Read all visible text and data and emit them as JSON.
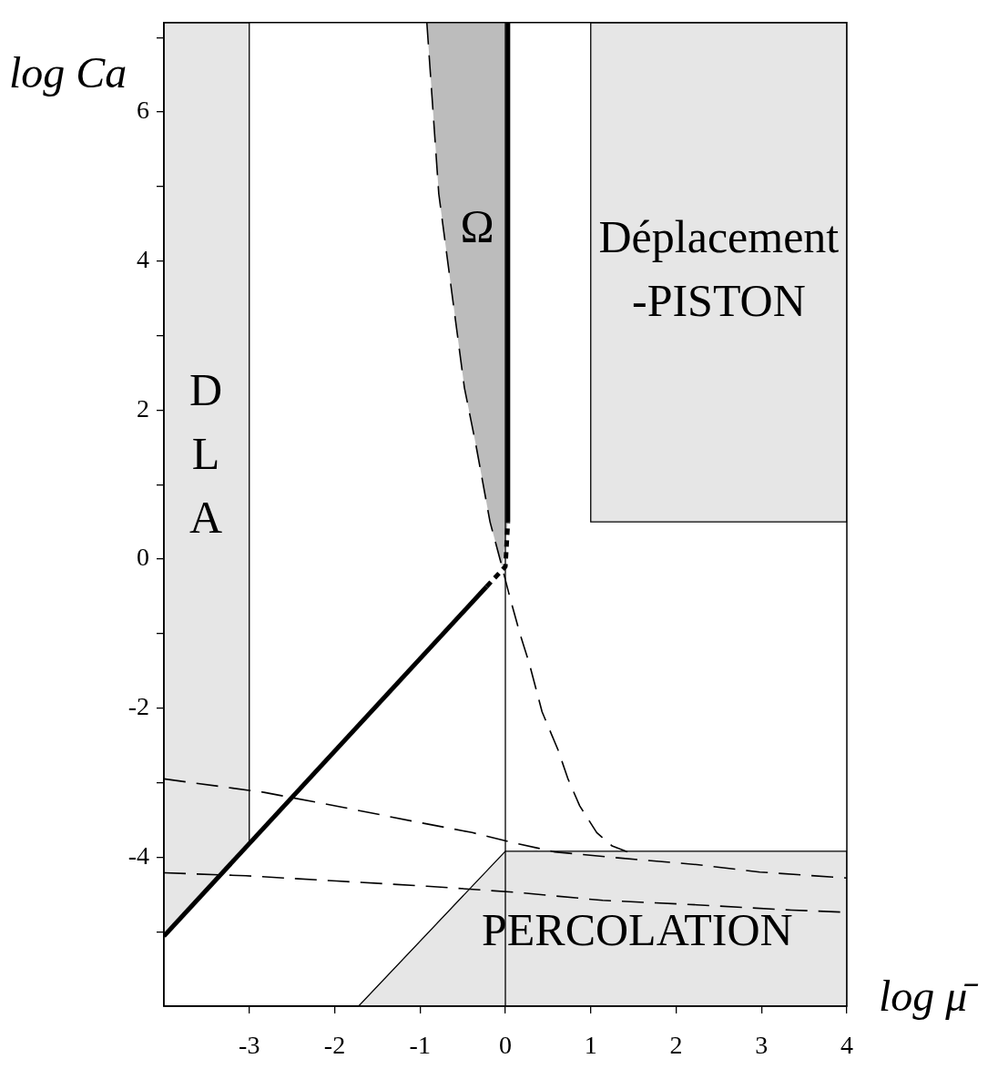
{
  "chart_data": {
    "type": "line",
    "xlabel": "log μ̄",
    "ylabel": "log Ca",
    "xlim": [
      -4,
      4
    ],
    "ylim": [
      -6,
      7.2
    ],
    "xticks": [
      -3,
      -2,
      -1,
      0,
      1,
      2,
      3,
      4
    ],
    "yticks": [
      {
        "value": -5,
        "label": null
      },
      -4,
      {
        "value": -3,
        "label": null
      },
      -2,
      {
        "value": -1,
        "label": null
      },
      0,
      {
        "value": 1,
        "label": null
      },
      2,
      {
        "value": 3,
        "label": null
      },
      4,
      {
        "value": 5,
        "label": null
      },
      6,
      {
        "value": 7,
        "label": null
      }
    ],
    "series": [
      {
        "color": "#e6e6e6",
        "line_style": "solid",
        "x": [
          -4,
          -3
        ],
        "values": [
          null,
          null
        ],
        "lower": [
          -5.06,
          -3.82
        ],
        "upper": [
          7.2,
          7.2
        ]
      },
      {
        "color": "#bcbcbc",
        "x": [
          -0.92,
          -0.78,
          -0.48,
          -0.34,
          -0.18,
          -0.04,
          0.03
        ],
        "values": [
          null,
          null,
          null,
          null,
          null,
          null,
          null
        ],
        "lower": [
          7.2,
          4.9,
          2.3,
          1.5,
          0.5,
          -0.1,
          0.5
        ],
        "upper": [
          7.2,
          7.2,
          7.2,
          7.2,
          7.2,
          7.2,
          7.2
        ]
      },
      {
        "color": "#e6e6e6",
        "line_style": "solid",
        "x": [
          1,
          4
        ],
        "values": [
          null,
          null
        ],
        "lower": [
          0.5,
          0.5
        ],
        "upper": [
          7.2,
          7.2
        ]
      },
      {
        "color": "#e6e6e6",
        "line_style": "solid",
        "x": [
          -1.72,
          0,
          4
        ],
        "values": [
          null,
          null,
          null
        ],
        "lower": [
          -6,
          -6,
          -6
        ],
        "upper": [
          -6,
          -3.92,
          -3.92
        ]
      },
      {
        "color": "#000000",
        "line_style": "dashed",
        "x": [
          -0.92,
          -0.78,
          -0.48,
          -0.34,
          -0.18,
          -0.04,
          0.05,
          0.17,
          0.28,
          0.43,
          0.62,
          0.73,
          0.87,
          1.07,
          1.25,
          1.43
        ],
        "values": [
          7.2,
          4.9,
          2.3,
          1.5,
          0.5,
          -0.1,
          -0.5,
          -1,
          -1.4,
          -2.05,
          -2.57,
          -2.94,
          -3.31,
          -3.67,
          -3.85,
          -3.93
        ]
      },
      {
        "color": "#000000",
        "line_style": "dashed",
        "x": [
          -4,
          -2.83,
          -1.91,
          -1.03,
          -0.39,
          0.03,
          0.58,
          1.32,
          2.24,
          2.98,
          4
        ],
        "values": [
          -2.95,
          -3.13,
          -3.33,
          -3.53,
          -3.67,
          -3.79,
          -3.93,
          -4.01,
          -4.1,
          -4.2,
          -4.28
        ]
      },
      {
        "color": "#000000",
        "line_style": "dashed",
        "x": [
          -4,
          -3.04,
          -1.98,
          -0.92,
          0.1,
          1.14,
          2.24,
          3.35,
          4
        ],
        "values": [
          -4.21,
          -4.25,
          -4.32,
          -4.39,
          -4.47,
          -4.58,
          -4.64,
          -4.71,
          -4.74
        ]
      },
      {
        "color": "#000000",
        "line_style": "solid",
        "x": [
          -4,
          -0.22
        ],
        "values": [
          -5.06,
          -0.37
        ]
      },
      {
        "color": "#000000",
        "line_style": "dotted",
        "x": [
          -0.22,
          0,
          0.03
        ],
        "values": [
          -0.37,
          -0.1,
          0.5
        ]
      },
      {
        "color": "#000000",
        "line_style": "solid",
        "x": [
          0.03,
          0.03
        ],
        "values": [
          0.5,
          7.2
        ]
      }
    ],
    "ref_lines": [
      {
        "axis": "x",
        "value": 0,
        "color": "#000000"
      }
    ],
    "annotations": [
      "D\nL\nA",
      "Ω",
      "Déplacement\n-PISTON",
      "PERCOLATION"
    ]
  }
}
